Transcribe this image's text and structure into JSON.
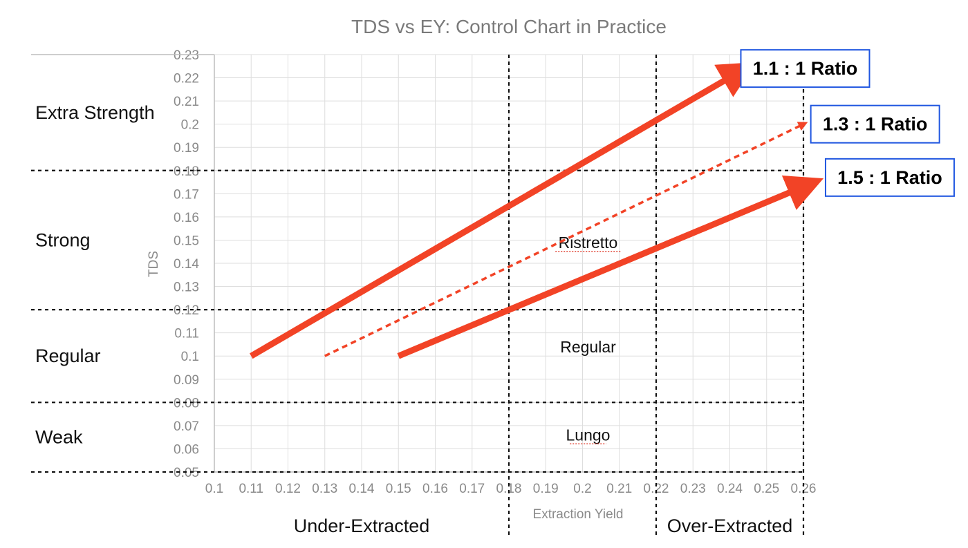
{
  "chart_data": {
    "type": "line",
    "title": "TDS vs EY: Control Chart in Practice",
    "xlabel": "Extraction Yield",
    "ylabel": "TDS",
    "xlim": [
      0.1,
      0.26
    ],
    "ylim": [
      0.05,
      0.23
    ],
    "x_ticks": [
      "0.1",
      "0.11",
      "0.12",
      "0.13",
      "0.14",
      "0.15",
      "0.16",
      "0.17",
      "0.18",
      "0.19",
      "0.2",
      "0.21",
      "0.22",
      "0.23",
      "0.24",
      "0.25",
      "0.26"
    ],
    "y_ticks": [
      "0.23",
      "0.22",
      "0.21",
      "0.2",
      "0.19",
      "0.18",
      "0.17",
      "0.16",
      "0.15",
      "0.14",
      "0.13",
      "0.12",
      "0.11",
      "0.1",
      "0.09",
      "0.08",
      "0.07",
      "0.06",
      "0.05"
    ],
    "grid": true,
    "strength_thresholds": [
      0.18,
      0.12,
      0.08,
      0.05
    ],
    "extraction_thresholds": [
      0.18,
      0.22,
      0.26
    ],
    "strength_bands": [
      {
        "label": "Extra Strength",
        "center": 0.205
      },
      {
        "label": "Strong",
        "center": 0.15
      },
      {
        "label": "Regular",
        "center": 0.1
      },
      {
        "label": "Weak",
        "center": 0.065
      }
    ],
    "extraction_zones": [
      {
        "label": "Under-Extracted",
        "center": 0.14
      },
      {
        "label": "Over-Extracted",
        "center": 0.24
      }
    ],
    "region_labels": [
      {
        "label": "Ristretto",
        "x": 0.2,
        "y": 0.149,
        "underline": true
      },
      {
        "label": "Regular",
        "x": 0.2,
        "y": 0.104,
        "underline": false
      },
      {
        "label": "Lungo",
        "x": 0.2,
        "y": 0.066,
        "underline": true
      }
    ],
    "series": [
      {
        "name": "1.1 : 1 Ratio",
        "style": "solid",
        "x": [
          0.11,
          0.242
        ],
        "y": [
          0.1,
          0.222
        ],
        "box_x": 0.243,
        "box_y": 0.224
      },
      {
        "name": "1.3 : 1 Ratio",
        "style": "dashed",
        "x": [
          0.13,
          0.26
        ],
        "y": [
          0.1,
          0.2
        ],
        "box_x": 0.262,
        "box_y": 0.2
      },
      {
        "name": "1.5 : 1 Ratio",
        "style": "solid",
        "x": [
          0.15,
          0.26
        ],
        "y": [
          0.1,
          0.173
        ],
        "box_x": 0.266,
        "box_y": 0.177
      }
    ]
  },
  "colors": {
    "series": "#f24326",
    "box_border": "#1f56e0",
    "title": "#7a7a7a",
    "tick": "#8a8a8a",
    "grid": "#dedede",
    "threshold": "#111111"
  }
}
